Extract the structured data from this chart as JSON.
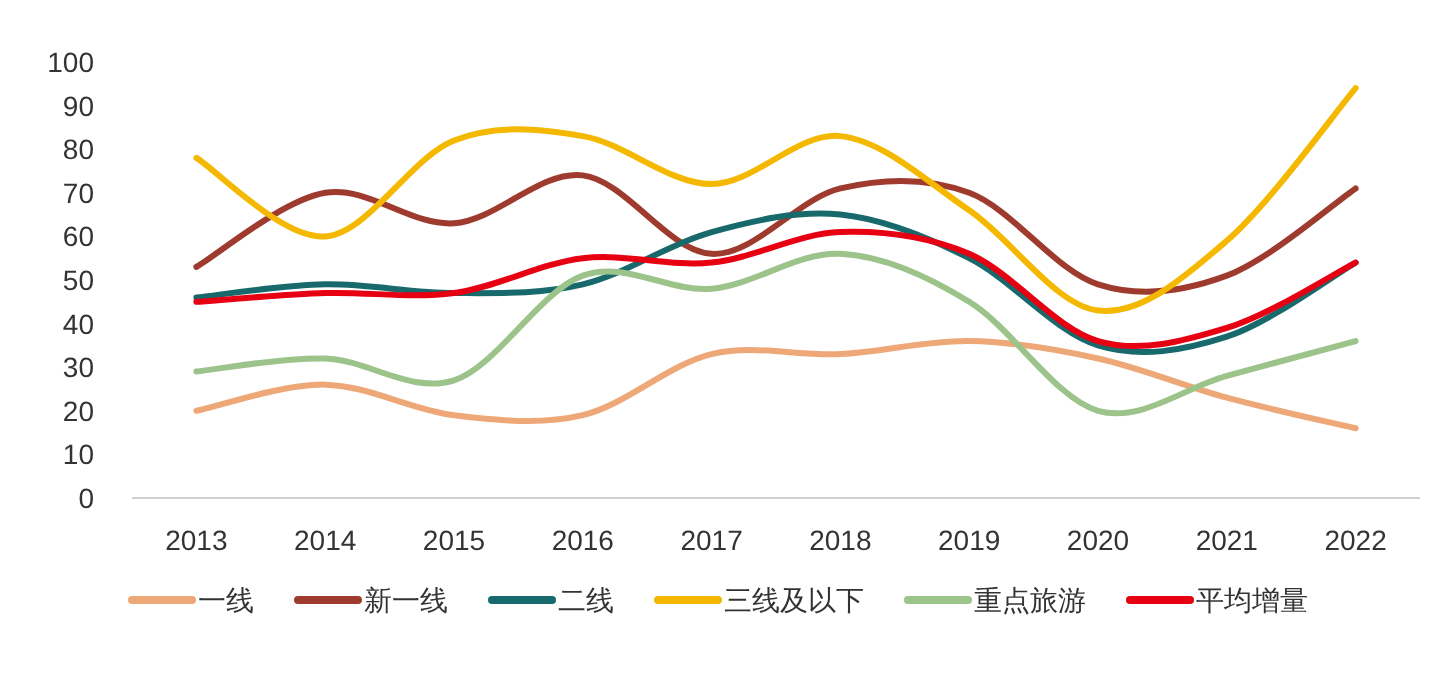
{
  "chart_data": {
    "type": "line",
    "categories": [
      "2013",
      "2014",
      "2015",
      "2016",
      "2017",
      "2018",
      "2019",
      "2020",
      "2021",
      "2022"
    ],
    "ylim": [
      0,
      100
    ],
    "yticks": [
      0,
      10,
      20,
      30,
      40,
      50,
      60,
      70,
      80,
      90,
      100
    ],
    "legend": "bottom",
    "series": [
      {
        "name": "一线",
        "color": "#eea777",
        "values": [
          20,
          26,
          19,
          19,
          33,
          33,
          36,
          32,
          23,
          16
        ]
      },
      {
        "name": "新一线",
        "color": "#9e3b2e",
        "values": [
          53,
          70,
          63,
          74,
          56,
          71,
          70,
          49,
          51,
          71
        ]
      },
      {
        "name": "二线",
        "color": "#17696b",
        "values": [
          46,
          49,
          47,
          49,
          61,
          65,
          55,
          35,
          37,
          54
        ]
      },
      {
        "name": "三线及以下",
        "color": "#f5b800",
        "values": [
          78,
          60,
          82,
          83,
          72,
          83,
          66,
          43,
          59,
          94
        ]
      },
      {
        "name": "重点旅游",
        "color": "#9cc38a",
        "values": [
          29,
          32,
          27,
          51,
          48,
          56,
          45,
          20,
          28,
          36
        ]
      },
      {
        "name": "平均增量",
        "color": "#e60012",
        "values": [
          45,
          47,
          47,
          55,
          54,
          61,
          56,
          36,
          39,
          54
        ]
      }
    ]
  }
}
